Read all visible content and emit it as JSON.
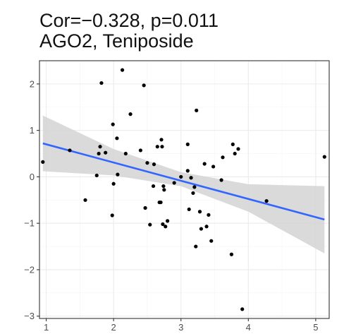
{
  "chart_data": {
    "type": "scatter",
    "title_lines": [
      "Cor=−0.328, p=0.011",
      "AGO2, Teniposide"
    ],
    "xlabel": "",
    "ylabel": "",
    "xlim": [
      0.9,
      5.2
    ],
    "ylim": [
      -3.05,
      2.5
    ],
    "x_ticks": [
      1,
      2,
      3,
      4,
      5
    ],
    "y_ticks": [
      -3,
      -2,
      -1,
      0,
      1,
      2
    ],
    "grid": true,
    "colors": {
      "points": "#000000",
      "fit_line": "#3366ff",
      "confidence_band": "#d4d4d4",
      "grid_major": "#ebebeb",
      "grid_minor": "#f5f5f5",
      "panel_border": "#333333"
    },
    "points": [
      {
        "x": 0.95,
        "y": 0.32
      },
      {
        "x": 1.35,
        "y": 0.57
      },
      {
        "x": 1.58,
        "y": -0.5
      },
      {
        "x": 1.75,
        "y": 0.03
      },
      {
        "x": 1.78,
        "y": 0.5
      },
      {
        "x": 1.8,
        "y": 0.65
      },
      {
        "x": 1.82,
        "y": 2.02
      },
      {
        "x": 1.88,
        "y": 0.52
      },
      {
        "x": 1.98,
        "y": -0.83
      },
      {
        "x": 1.99,
        "y": 1.13
      },
      {
        "x": 2.0,
        "y": -0.15
      },
      {
        "x": 2.05,
        "y": 0.83
      },
      {
        "x": 2.06,
        "y": 0.05
      },
      {
        "x": 2.13,
        "y": 2.3
      },
      {
        "x": 2.18,
        "y": 0.5
      },
      {
        "x": 2.25,
        "y": 1.35
      },
      {
        "x": 2.4,
        "y": 0.57
      },
      {
        "x": 2.45,
        "y": 1.97
      },
      {
        "x": 2.47,
        "y": -0.67
      },
      {
        "x": 2.5,
        "y": 0.3
      },
      {
        "x": 2.54,
        "y": -1.03
      },
      {
        "x": 2.59,
        "y": -0.2
      },
      {
        "x": 2.6,
        "y": 0.27
      },
      {
        "x": 2.65,
        "y": 0.65
      },
      {
        "x": 2.68,
        "y": -0.55
      },
      {
        "x": 2.7,
        "y": -0.55
      },
      {
        "x": 2.71,
        "y": 0.8
      },
      {
        "x": 2.72,
        "y": 0.65
      },
      {
        "x": 2.73,
        "y": -1.02
      },
      {
        "x": 2.74,
        "y": -0.2
      },
      {
        "x": 2.75,
        "y": -0.28
      },
      {
        "x": 2.77,
        "y": -1.07
      },
      {
        "x": 2.8,
        "y": -0.95
      },
      {
        "x": 2.9,
        "y": -0.13
      },
      {
        "x": 3.0,
        "y": 0.0
      },
      {
        "x": 3.1,
        "y": 0.7
      },
      {
        "x": 3.1,
        "y": 0.13
      },
      {
        "x": 3.12,
        "y": -0.7
      },
      {
        "x": 3.15,
        "y": -0.02
      },
      {
        "x": 3.18,
        "y": -0.35
      },
      {
        "x": 3.2,
        "y": -0.22
      },
      {
        "x": 3.22,
        "y": -1.5
      },
      {
        "x": 3.23,
        "y": 1.43
      },
      {
        "x": 3.28,
        "y": -0.75
      },
      {
        "x": 3.3,
        "y": -1.12
      },
      {
        "x": 3.35,
        "y": 0.28
      },
      {
        "x": 3.38,
        "y": -1.07
      },
      {
        "x": 3.41,
        "y": -0.82
      },
      {
        "x": 3.45,
        "y": -1.38
      },
      {
        "x": 3.48,
        "y": 0.22
      },
      {
        "x": 3.6,
        "y": -0.07
      },
      {
        "x": 3.62,
        "y": 0.42
      },
      {
        "x": 3.75,
        "y": -1.67
      },
      {
        "x": 3.77,
        "y": 0.7
      },
      {
        "x": 3.8,
        "y": 0.5
      },
      {
        "x": 3.85,
        "y": 0.6
      },
      {
        "x": 3.91,
        "y": -2.85
      },
      {
        "x": 4.27,
        "y": -0.52
      },
      {
        "x": 5.13,
        "y": 0.43
      }
    ],
    "fit_line": {
      "x": [
        0.95,
        5.13
      ],
      "y": [
        0.72,
        -0.92
      ]
    },
    "confidence_band": {
      "x": [
        0.95,
        2.0,
        3.0,
        4.0,
        5.13
      ],
      "upper": [
        1.32,
        0.6,
        0.1,
        -0.16,
        -0.2
      ],
      "lower": [
        0.12,
        0.03,
        -0.2,
        -0.75,
        -1.65
      ]
    }
  }
}
